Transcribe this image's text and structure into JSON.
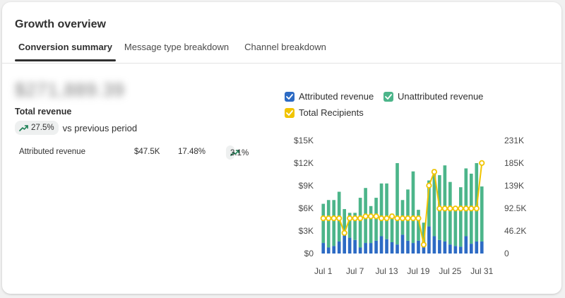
{
  "card": {
    "title": "Growth overview",
    "tabs": [
      {
        "label": "Conversion summary",
        "active": true
      },
      {
        "label": "Message type breakdown",
        "active": false
      },
      {
        "label": "Channel breakdown",
        "active": false
      }
    ]
  },
  "summary": {
    "total_value": "$271,889.39",
    "total_label": "Total revenue",
    "change": "27.5%",
    "change_direction": "up",
    "vs_text": "vs previous period"
  },
  "metrics": [
    {
      "label": "Attributed revenue",
      "value": "$47.5K",
      "share": "17.48%",
      "change": "3.1%",
      "change_direction": "up"
    }
  ],
  "colors": {
    "attributed": "#2d6bc4",
    "unattributed": "#4cb58a",
    "recipients": "#f1c400",
    "trend_up": "#1a7f53"
  },
  "legend": [
    {
      "label": "Attributed revenue",
      "color": "#2d6bc4",
      "checked": true
    },
    {
      "label": "Unattributed revenue",
      "color": "#4cb58a",
      "checked": true
    },
    {
      "label": "Total Recipients",
      "color": "#f1c400",
      "checked": true
    }
  ],
  "chart_data": {
    "type": "bar",
    "stacked": true,
    "categories": [
      "Jul 1",
      "Jul 2",
      "Jul 3",
      "Jul 4",
      "Jul 5",
      "Jul 6",
      "Jul 7",
      "Jul 8",
      "Jul 9",
      "Jul 10",
      "Jul 11",
      "Jul 12",
      "Jul 13",
      "Jul 14",
      "Jul 15",
      "Jul 16",
      "Jul 17",
      "Jul 18",
      "Jul 19",
      "Jul 20",
      "Jul 21",
      "Jul 22",
      "Jul 23",
      "Jul 24",
      "Jul 25",
      "Jul 26",
      "Jul 27",
      "Jul 28",
      "Jul 29",
      "Jul 30",
      "Jul 31"
    ],
    "x_tick_labels": [
      "Jul 1",
      "Jul 7",
      "Jul 13",
      "Jul 19",
      "Jul 25",
      "Jul 31"
    ],
    "y_left": {
      "ticks": [
        "$0",
        "$3K",
        "$6K",
        "$9K",
        "$12K",
        "$15K"
      ],
      "min": 0,
      "max": 15000
    },
    "y_right": {
      "ticks": [
        "0",
        "46.2K",
        "92.5K",
        "139K",
        "185K",
        "231K"
      ],
      "min": 0,
      "max": 231000
    },
    "series": [
      {
        "name": "Attributed revenue",
        "axis": "left",
        "values": [
          1400,
          800,
          1000,
          1600,
          2700,
          2100,
          1800,
          800,
          1400,
          1400,
          1700,
          2300,
          1900,
          1500,
          1200,
          2500,
          1700,
          1400,
          1700,
          1500,
          3600,
          2300,
          1800,
          1600,
          1200,
          1000,
          900,
          2300,
          1300,
          1600,
          1600
        ]
      },
      {
        "name": "Unattributed revenue",
        "axis": "left",
        "values": [
          5200,
          6300,
          6100,
          6600,
          3200,
          3300,
          3600,
          6600,
          7300,
          4900,
          5700,
          7000,
          7400,
          3800,
          10800,
          4600,
          6800,
          9500,
          4100,
          2600,
          6100,
          8900,
          8600,
          10100,
          8300,
          4700,
          7900,
          9000,
          9300,
          10400,
          7300
        ]
      },
      {
        "name": "Total Recipients",
        "axis": "right",
        "values": [
          72000,
          72000,
          72000,
          72000,
          42000,
          72000,
          72000,
          72000,
          76000,
          76000,
          76000,
          72000,
          72000,
          76000,
          72000,
          72000,
          72000,
          72000,
          72000,
          18000,
          139000,
          167000,
          92000,
          92000,
          92000,
          92000,
          92000,
          92000,
          92000,
          92000,
          185000
        ]
      }
    ],
    "legend_position": "top",
    "grid": false
  }
}
